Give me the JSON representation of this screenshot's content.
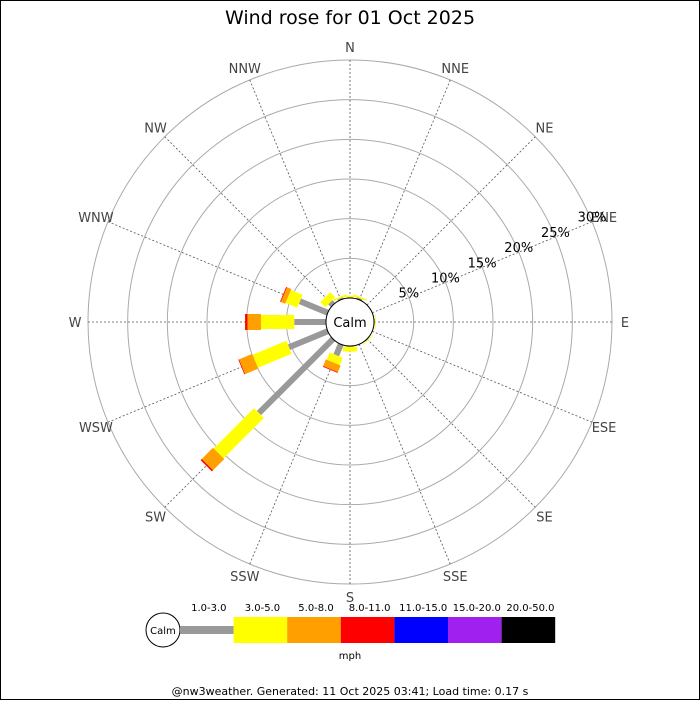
{
  "chart_data": {
    "type": "windrose",
    "title": "Wind rose for 01 Oct 2025",
    "directions": [
      "N",
      "NNE",
      "NE",
      "ENE",
      "E",
      "ESE",
      "SE",
      "SSE",
      "S",
      "SSW",
      "SW",
      "WSW",
      "W",
      "WNW",
      "NW",
      "NNW"
    ],
    "radial_ticks": [
      "5%",
      "10%",
      "15%",
      "20%",
      "25%",
      "30%"
    ],
    "radial_tick_values": [
      5,
      10,
      15,
      20,
      25,
      30
    ],
    "radial_max": 30,
    "calm_label": "Calm",
    "unit_label": "mph",
    "bins": [
      {
        "label": "1.0-3.0",
        "color": "#999999"
      },
      {
        "label": "3.0-5.0",
        "color": "#ffff00"
      },
      {
        "label": "5.0-8.0",
        "color": "#ffa000"
      },
      {
        "label": "8.0-11.0",
        "color": "#ff0000"
      },
      {
        "label": "11.0-15.0",
        "color": "#0000ff"
      },
      {
        "label": "15.0-20.0",
        "color": "#a020f0"
      },
      {
        "label": "20.0-50.0",
        "color": "#000000"
      }
    ],
    "series": [
      {
        "direction": "N",
        "values": [
          0.1,
          0.2,
          0,
          0,
          0,
          0,
          0
        ]
      },
      {
        "direction": "NNE",
        "values": [
          0.2,
          0.2,
          0,
          0,
          0,
          0,
          0
        ]
      },
      {
        "direction": "E",
        "values": [
          0.1,
          0.1,
          0,
          0,
          0,
          0,
          0
        ]
      },
      {
        "direction": "SE",
        "values": [
          0.1,
          0.1,
          0,
          0,
          0,
          0,
          0
        ]
      },
      {
        "direction": "S",
        "values": [
          0.1,
          0.6,
          0,
          0,
          0,
          0,
          0
        ]
      },
      {
        "direction": "SSW",
        "values": [
          1.5,
          1.0,
          0.9,
          0.1,
          0,
          0,
          0
        ]
      },
      {
        "direction": "SW",
        "values": [
          13.2,
          7.2,
          2.0,
          0.2,
          0,
          0,
          0
        ]
      },
      {
        "direction": "WSW",
        "values": [
          5.3,
          4.6,
          1.8,
          0.1,
          0,
          0,
          0
        ]
      },
      {
        "direction": "W",
        "values": [
          4.0,
          4.2,
          1.7,
          0.3,
          0,
          0,
          0
        ]
      },
      {
        "direction": "WNW",
        "values": [
          3.8,
          1.6,
          0.6,
          0.1,
          0,
          0,
          0
        ]
      },
      {
        "direction": "NW",
        "values": [
          0.5,
          0.9,
          0,
          0,
          0,
          0,
          0
        ]
      },
      {
        "direction": "NNW",
        "values": [
          0.2,
          0.2,
          0,
          0,
          0,
          0,
          0
        ]
      }
    ],
    "footer": "@nw3weather. Generated: 11 Oct 2025 03:41; Load time: 0.17 s"
  }
}
